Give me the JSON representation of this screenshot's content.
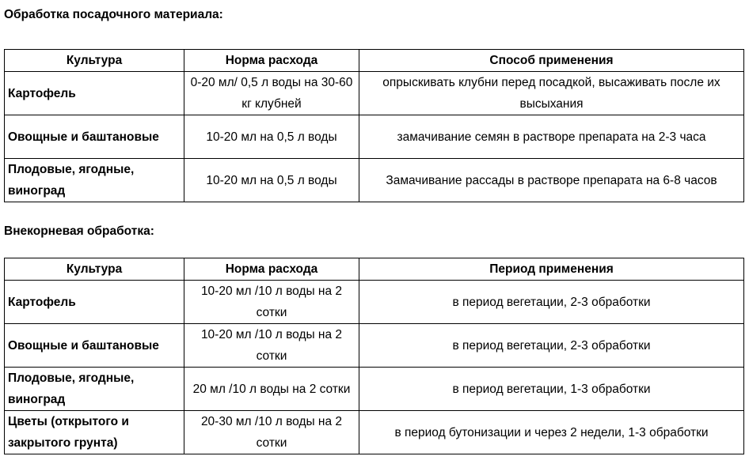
{
  "section1": {
    "heading": "Обработка посадочного материала:",
    "headers": [
      "Культура",
      "Норма расхода",
      "Способ применения"
    ],
    "rows": [
      [
        "Картофель",
        "0-20 мл/ 0,5 л воды на 30-60 кг клубней",
        "опрыскивать клубни перед посадкой, высаживать после их высыхания"
      ],
      [
        "Овощные и баштановые",
        "10-20 мл на 0,5 л воды",
        "замачивание семян в растворе препарата на 2-3 часа"
      ],
      [
        "Плодовые, ягодные, виноград",
        "10-20 мл на 0,5 л воды",
        "Замачивание рассады в растворе препарата на 6-8 часов"
      ]
    ]
  },
  "section2": {
    "heading": "Внекорневая обработка:",
    "headers": [
      "Культура",
      "Норма расхода",
      "Период применения"
    ],
    "rows": [
      [
        "Картофель",
        "10-20 мл /10 л воды на 2 сотки",
        "в период вегетации, 2-3 обработки"
      ],
      [
        "Овощные и баштановые",
        "10-20 мл /10 л воды на 2 сотки",
        "в период вегетации, 2-3 обработки"
      ],
      [
        "Плодовые, ягодные, виноград",
        "20 мл /10 л воды на 2 сотки",
        "в период вегетации, 1-3 обработки"
      ],
      [
        "Цветы (открытого и закрытого грунта)",
        "20-30 мл /10 л воды на 2 сотки",
        "в период бутонизации и через 2 недели, 1-3 обработки"
      ]
    ]
  }
}
